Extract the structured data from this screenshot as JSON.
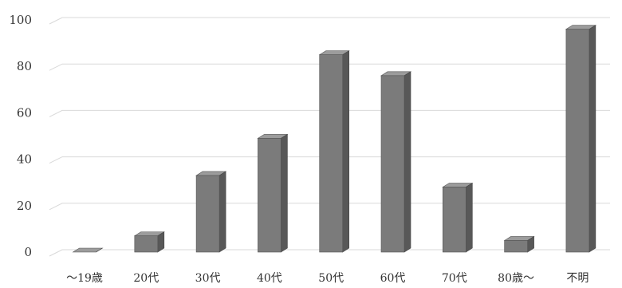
{
  "chart_data": {
    "type": "bar",
    "style": "3d-column",
    "categories": [
      "～19歳",
      "20代",
      "30代",
      "40代",
      "50代",
      "60代",
      "70代",
      "80歳～",
      "不明"
    ],
    "values": [
      0,
      7,
      33,
      49,
      85,
      76,
      28,
      5,
      96
    ],
    "ylim": [
      0,
      100
    ],
    "yticks": [
      0,
      20,
      40,
      60,
      80,
      100
    ],
    "grid": true,
    "legend": "none",
    "colors": {
      "bar_front": "#7b7b7b",
      "bar_side": "#585858",
      "bar_top": "#9c9c9c",
      "grid": "#d9d9d9",
      "text": "#333333"
    }
  }
}
